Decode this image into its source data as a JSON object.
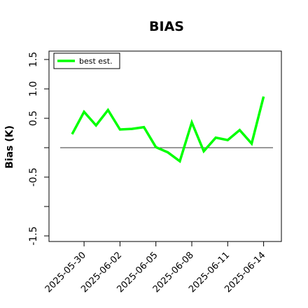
{
  "chart_data": {
    "type": "line",
    "title": "BIAS",
    "xlabel": "",
    "ylabel": "Bias (K)",
    "ylim": [
      -1.6,
      1.65
    ],
    "y_ticks": [
      -1.5,
      -1.0,
      -0.5,
      0.0,
      0.5,
      1.0,
      1.5
    ],
    "y_tick_labels": [
      "-1.5",
      "",
      "-0.5",
      "",
      "0.5",
      "1.0",
      "1.5"
    ],
    "x_tick_labels": [
      "2025-05-30",
      "2025-06-02",
      "2025-06-05",
      "2025-06-08",
      "2025-06-11",
      "2025-06-14"
    ],
    "x": [
      "2025-05-29",
      "2025-05-30",
      "2025-05-31",
      "2025-06-01",
      "2025-06-02",
      "2025-06-03",
      "2025-06-04",
      "2025-06-05",
      "2025-06-06",
      "2025-06-07",
      "2025-06-08",
      "2025-06-09",
      "2025-06-10",
      "2025-06-11",
      "2025-06-12",
      "2025-06-13",
      "2025-06-14"
    ],
    "series": [
      {
        "name": "best est.",
        "color": "#00ff00",
        "values": [
          0.23,
          0.61,
          0.38,
          0.64,
          0.31,
          0.32,
          0.35,
          0.01,
          -0.08,
          -0.23,
          0.43,
          -0.06,
          0.17,
          0.13,
          0.3,
          0.07,
          0.87
        ]
      }
    ],
    "reference_line": {
      "y": 0.0,
      "color": "#333333"
    },
    "grid": false,
    "legend": "top-left"
  }
}
